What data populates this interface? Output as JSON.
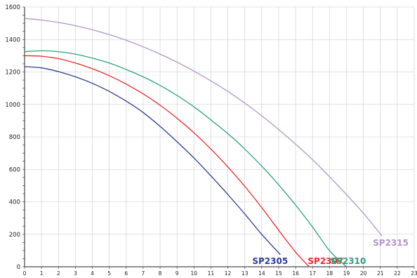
{
  "chart_data": {
    "type": "line",
    "title": "",
    "xlabel": "",
    "ylabel": "",
    "xlim": [
      0,
      23
    ],
    "ylim": [
      0,
      1600
    ],
    "xticks": [
      "0",
      "1",
      "2",
      "3",
      "4",
      "5",
      "6",
      "7",
      "8",
      "9",
      "10",
      "11",
      "12",
      "13",
      "14",
      "15",
      "16",
      "17",
      "18",
      "19",
      "20",
      "21",
      "22",
      "23"
    ],
    "yticks": [
      "0",
      "200",
      "400",
      "600",
      "800",
      "1000",
      "1200",
      "1400",
      "1600"
    ],
    "grid": true,
    "series": [
      {
        "name": "SP2305",
        "color": "#2e3d94",
        "x": [
          0,
          1,
          2,
          3,
          4,
          5,
          6,
          7,
          8,
          9,
          10,
          11,
          12,
          13,
          14,
          15.1
        ],
        "y": [
          1233,
          1225,
          1202,
          1170,
          1130,
          1080,
          1020,
          950,
          865,
          770,
          670,
          560,
          445,
          325,
          200,
          75
        ]
      },
      {
        "name": "SP2307",
        "color": "#e8282a",
        "x": [
          0,
          1,
          2,
          3,
          4,
          5,
          6,
          7,
          8,
          9,
          10,
          11,
          12,
          13,
          14,
          15,
          16,
          16.8
        ],
        "y": [
          1300,
          1297,
          1282,
          1255,
          1220,
          1177,
          1125,
          1065,
          995,
          915,
          825,
          725,
          615,
          495,
          365,
          225,
          90,
          0
        ]
      },
      {
        "name": "SP2310",
        "color": "#2aa37a",
        "x": [
          0,
          1,
          2,
          3,
          4,
          5,
          6,
          7,
          8,
          9,
          10,
          11,
          12,
          13,
          14,
          15,
          16,
          17,
          18,
          19
        ],
        "y": [
          1325,
          1330,
          1325,
          1310,
          1285,
          1255,
          1215,
          1170,
          1117,
          1055,
          985,
          905,
          820,
          725,
          620,
          505,
          380,
          245,
          100,
          -60
        ]
      },
      {
        "name": "SP2315",
        "color": "#b195c8",
        "x": [
          0,
          1,
          2,
          3,
          4,
          5,
          6,
          7,
          8,
          9,
          10,
          11,
          12,
          13,
          14,
          15,
          16,
          17,
          18,
          19,
          20,
          21.1
        ],
        "y": [
          1530,
          1520,
          1505,
          1485,
          1460,
          1430,
          1395,
          1355,
          1310,
          1260,
          1205,
          1145,
          1080,
          1008,
          930,
          845,
          755,
          660,
          555,
          445,
          330,
          190
        ]
      }
    ]
  }
}
